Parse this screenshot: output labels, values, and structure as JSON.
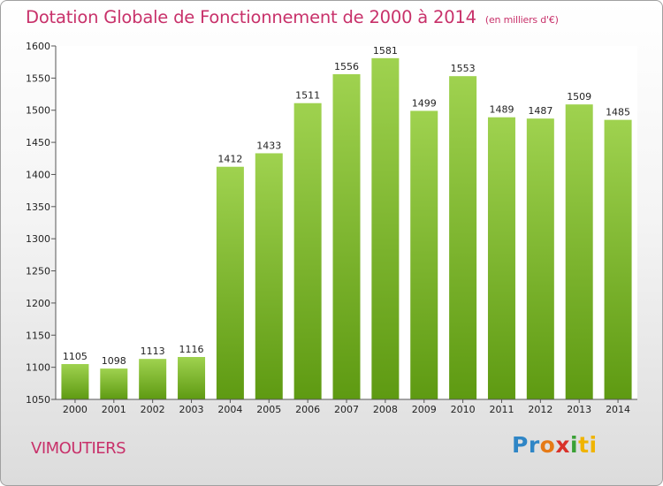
{
  "chart_data": {
    "type": "bar",
    "title": "Dotation Globale de Fonctionnement de 2000 à 2014",
    "subtitle": "(en milliers d'€)",
    "categories": [
      "2000",
      "2001",
      "2002",
      "2003",
      "2004",
      "2005",
      "2006",
      "2007",
      "2008",
      "2009",
      "2010",
      "2011",
      "2012",
      "2013",
      "2014"
    ],
    "values": [
      1105,
      1098,
      1113,
      1116,
      1412,
      1433,
      1511,
      1556,
      1581,
      1499,
      1553,
      1489,
      1487,
      1509,
      1485
    ],
    "ylim": [
      1050,
      1600
    ],
    "yticks": [
      1050,
      1100,
      1150,
      1200,
      1250,
      1300,
      1350,
      1400,
      1450,
      1500,
      1550,
      1600
    ],
    "grid": false,
    "bar_color": "#8cc63f"
  },
  "footer": {
    "commune": "VIMOUTIERS",
    "logo": [
      "Pr",
      "o",
      "x",
      "i",
      "ti"
    ]
  }
}
